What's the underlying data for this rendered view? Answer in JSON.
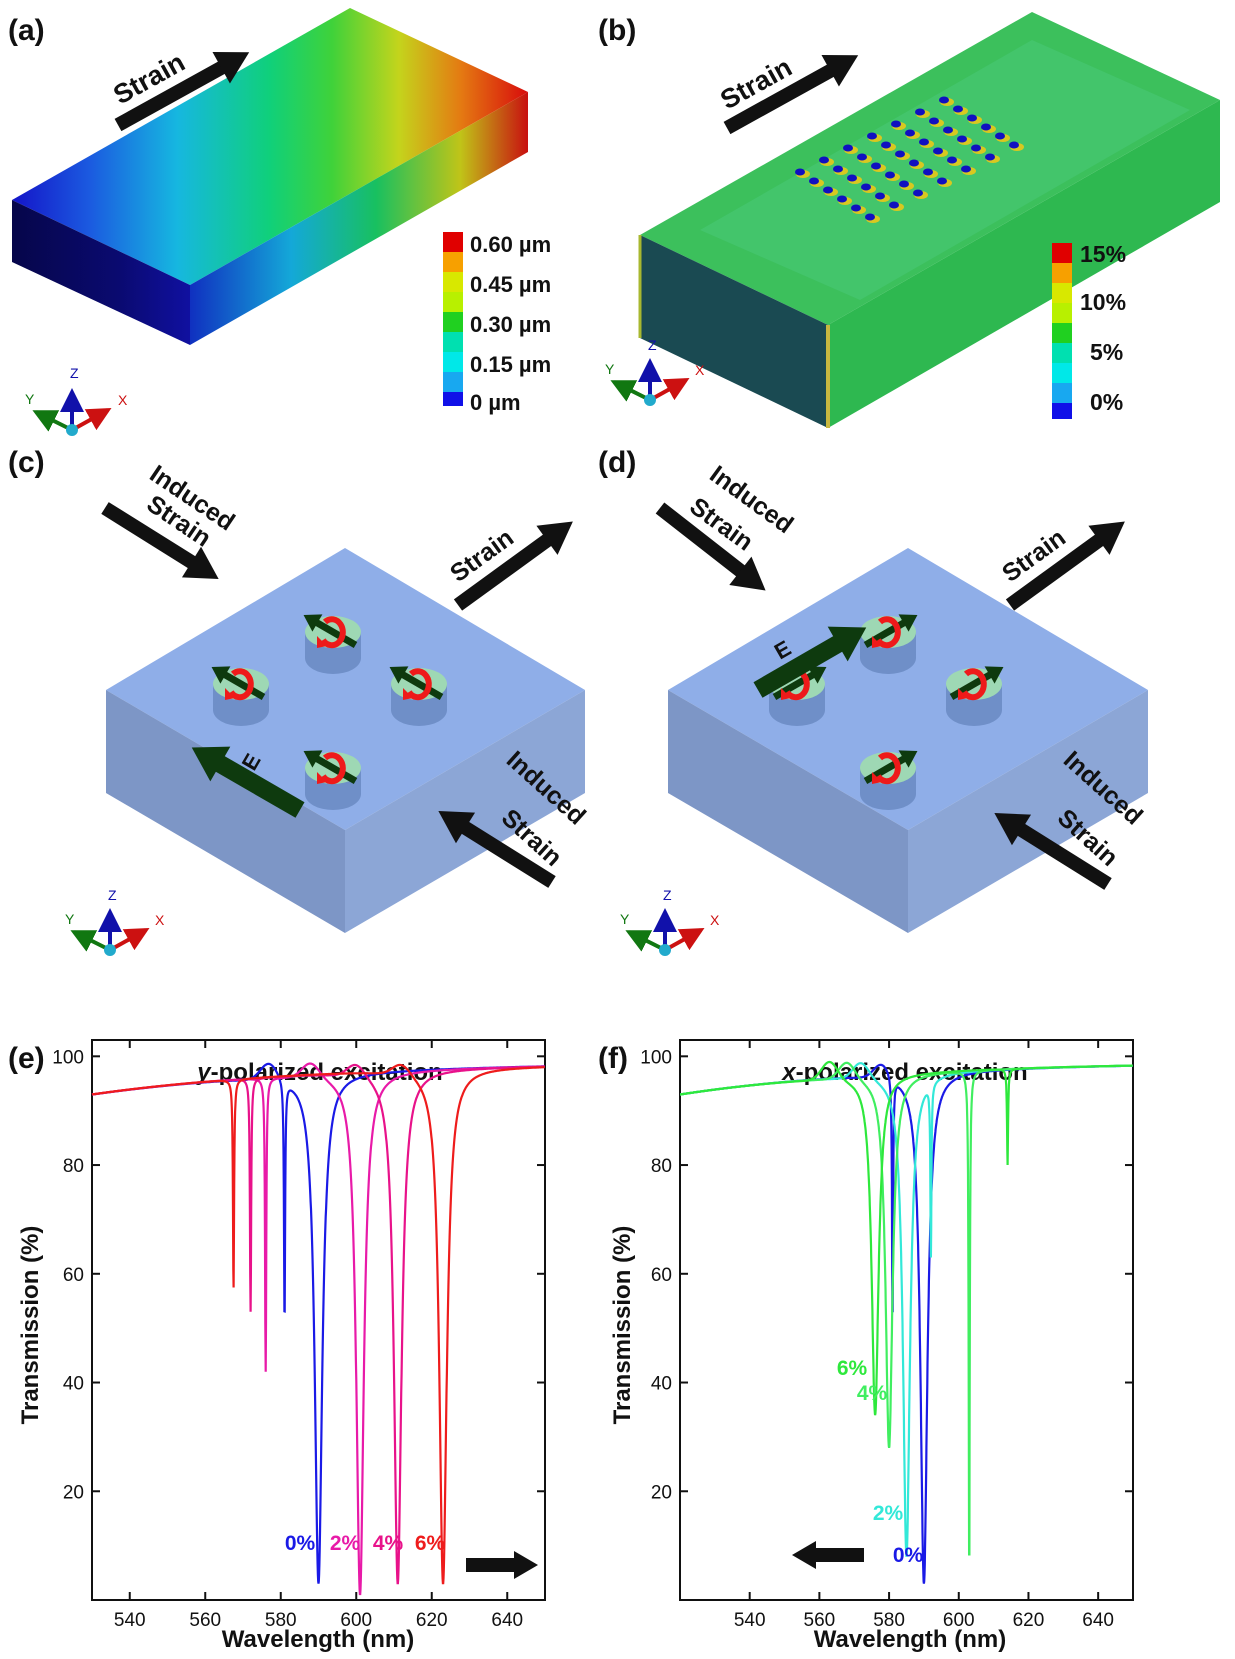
{
  "panels": {
    "a": {
      "label": "(a)",
      "arrow_text": "Strain",
      "legend": [
        "0.60 µm",
        "0.45 µm",
        "0.30 µm",
        "0.15 µm",
        "0 µm"
      ],
      "legend_colors": [
        "#e00000",
        "#f7a000",
        "#d8e800",
        "#b8f000",
        "#20d020",
        "#00e0b0",
        "#00e8e8",
        "#18a8f0",
        "#1010e8"
      ],
      "axes": {
        "x": "X",
        "y": "Y",
        "z": "Z"
      }
    },
    "b": {
      "label": "(b)",
      "arrow_text": "Strain",
      "legend": [
        "15%",
        "10%",
        "5%",
        "0%"
      ],
      "legend_colors": [
        "#e00000",
        "#f7a000",
        "#d8e800",
        "#b8f000",
        "#20d020",
        "#00e0b0",
        "#00e8e8",
        "#18a8f0",
        "#1010e8"
      ],
      "axes": {
        "x": "X",
        "y": "Y",
        "z": "Z"
      }
    },
    "c": {
      "label": "(c)",
      "induced_top": [
        "Induced",
        "Strain"
      ],
      "induced_bottom": [
        "Induced",
        "Strain"
      ],
      "strain": "Strain",
      "field": "E",
      "axes": {
        "x": "X",
        "y": "Y",
        "z": "Z"
      }
    },
    "d": {
      "label": "(d)",
      "induced_top": [
        "Induced",
        "Strain"
      ],
      "induced_bottom": [
        "Induced",
        "Strain"
      ],
      "strain": "Strain",
      "field": "E",
      "axes": {
        "x": "X",
        "y": "Y",
        "z": "Z"
      }
    }
  },
  "chart_data": [
    {
      "panel_label": "(e)",
      "type": "line",
      "title": "y-polarized excitation",
      "title_italic": "y",
      "title_rest": "-polarized excitation",
      "xlabel": "Wavelength (nm)",
      "ylabel": "Transmission (%)",
      "xlim": [
        530,
        650
      ],
      "ylim": [
        0,
        103
      ],
      "xticks": [
        540,
        560,
        580,
        600,
        620,
        640
      ],
      "yticks": [
        20,
        40,
        60,
        80,
        100
      ],
      "arrow_direction": "right",
      "series": [
        {
          "name": "0%",
          "color": "#1a1ae6",
          "base": 93,
          "peak_x": 577,
          "dip_x": 590,
          "dip_min": 3,
          "sharp": [
            {
              "x": 581,
              "min": 51
            }
          ]
        },
        {
          "name": "2%",
          "color": "#e81aa8",
          "base": 93,
          "peak_x": 588,
          "dip_x": 601,
          "dip_min": 1,
          "sharp": [
            {
              "x": 576,
              "min": 42
            }
          ]
        },
        {
          "name": "4%",
          "color": "#e8128a",
          "base": 93,
          "peak_x": 600,
          "dip_x": 611,
          "dip_min": 3,
          "sharp": [
            {
              "x": 572,
              "min": 53
            }
          ]
        },
        {
          "name": "6%",
          "color": "#ee1c1c",
          "base": 93,
          "peak_x": 612,
          "dip_x": 623,
          "dip_min": 3,
          "sharp": [
            {
              "x": 567.5,
              "min": 57
            }
          ]
        }
      ]
    },
    {
      "panel_label": "(f)",
      "type": "line",
      "title": "x-polarized excitation",
      "title_italic": "x",
      "title_rest": "-polarized excitation",
      "xlabel": "Wavelength (nm)",
      "ylabel": "Transmission (%)",
      "xlim": [
        520,
        650
      ],
      "ylim": [
        0,
        103
      ],
      "xticks": [
        540,
        560,
        580,
        600,
        620,
        640
      ],
      "yticks": [
        20,
        40,
        60,
        80,
        100
      ],
      "arrow_direction": "left",
      "series": [
        {
          "name": "0%",
          "color": "#1a1ae6",
          "base": 93,
          "peak_x": 578,
          "dip_x": 590,
          "dip_min": 3,
          "sharp": [
            {
              "x": 581,
              "min": 51
            }
          ]
        },
        {
          "name": "2%",
          "color": "#33e8d8",
          "base": 93,
          "peak_x": 572,
          "dip_x": 585,
          "dip_min": 8,
          "sharp": [
            {
              "x": 592,
              "min": 63
            }
          ]
        },
        {
          "name": "4%",
          "color": "#40ee60",
          "base": 93,
          "peak_x": 568,
          "dip_x": 580,
          "dip_min": 28,
          "sharp": [
            {
              "x": 603,
              "min": 4
            }
          ]
        },
        {
          "name": "6%",
          "color": "#2ee83c",
          "base": 93,
          "peak_x": 563,
          "dip_x": 576,
          "dip_min": 34,
          "sharp": [
            {
              "x": 614,
              "min": 80
            }
          ]
        }
      ]
    }
  ]
}
